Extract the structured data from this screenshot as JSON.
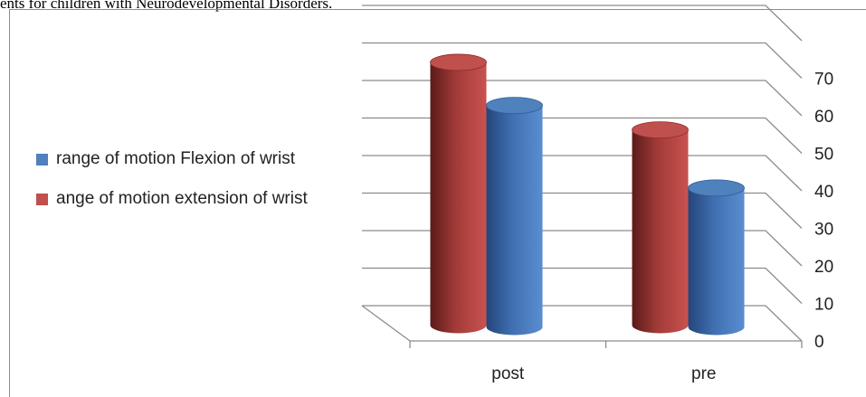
{
  "caption": "ents for children with Neurodevelopmental Disorders.",
  "chart_data": {
    "type": "bar",
    "categories": [
      "post",
      "pre"
    ],
    "series": [
      {
        "name": "ange of motion extension of wrist",
        "values": [
          70,
          52
        ],
        "color": "#c0504d"
      },
      {
        "name": "range of motion Flexion of wrist",
        "values": [
          59,
          37
        ],
        "color": "#4f81bd"
      }
    ],
    "legend": [
      {
        "label": "range of motion Flexion of wrist",
        "color": "#4f81bd"
      },
      {
        "label": "ange of motion extension of wrist",
        "color": "#c0504d"
      }
    ],
    "yticks": [
      "0",
      "10",
      "20",
      "30",
      "40",
      "50",
      "60",
      "70"
    ],
    "ylim": [
      0,
      80
    ],
    "grid": true,
    "legend_position": "left",
    "yaxis_position": "right"
  }
}
